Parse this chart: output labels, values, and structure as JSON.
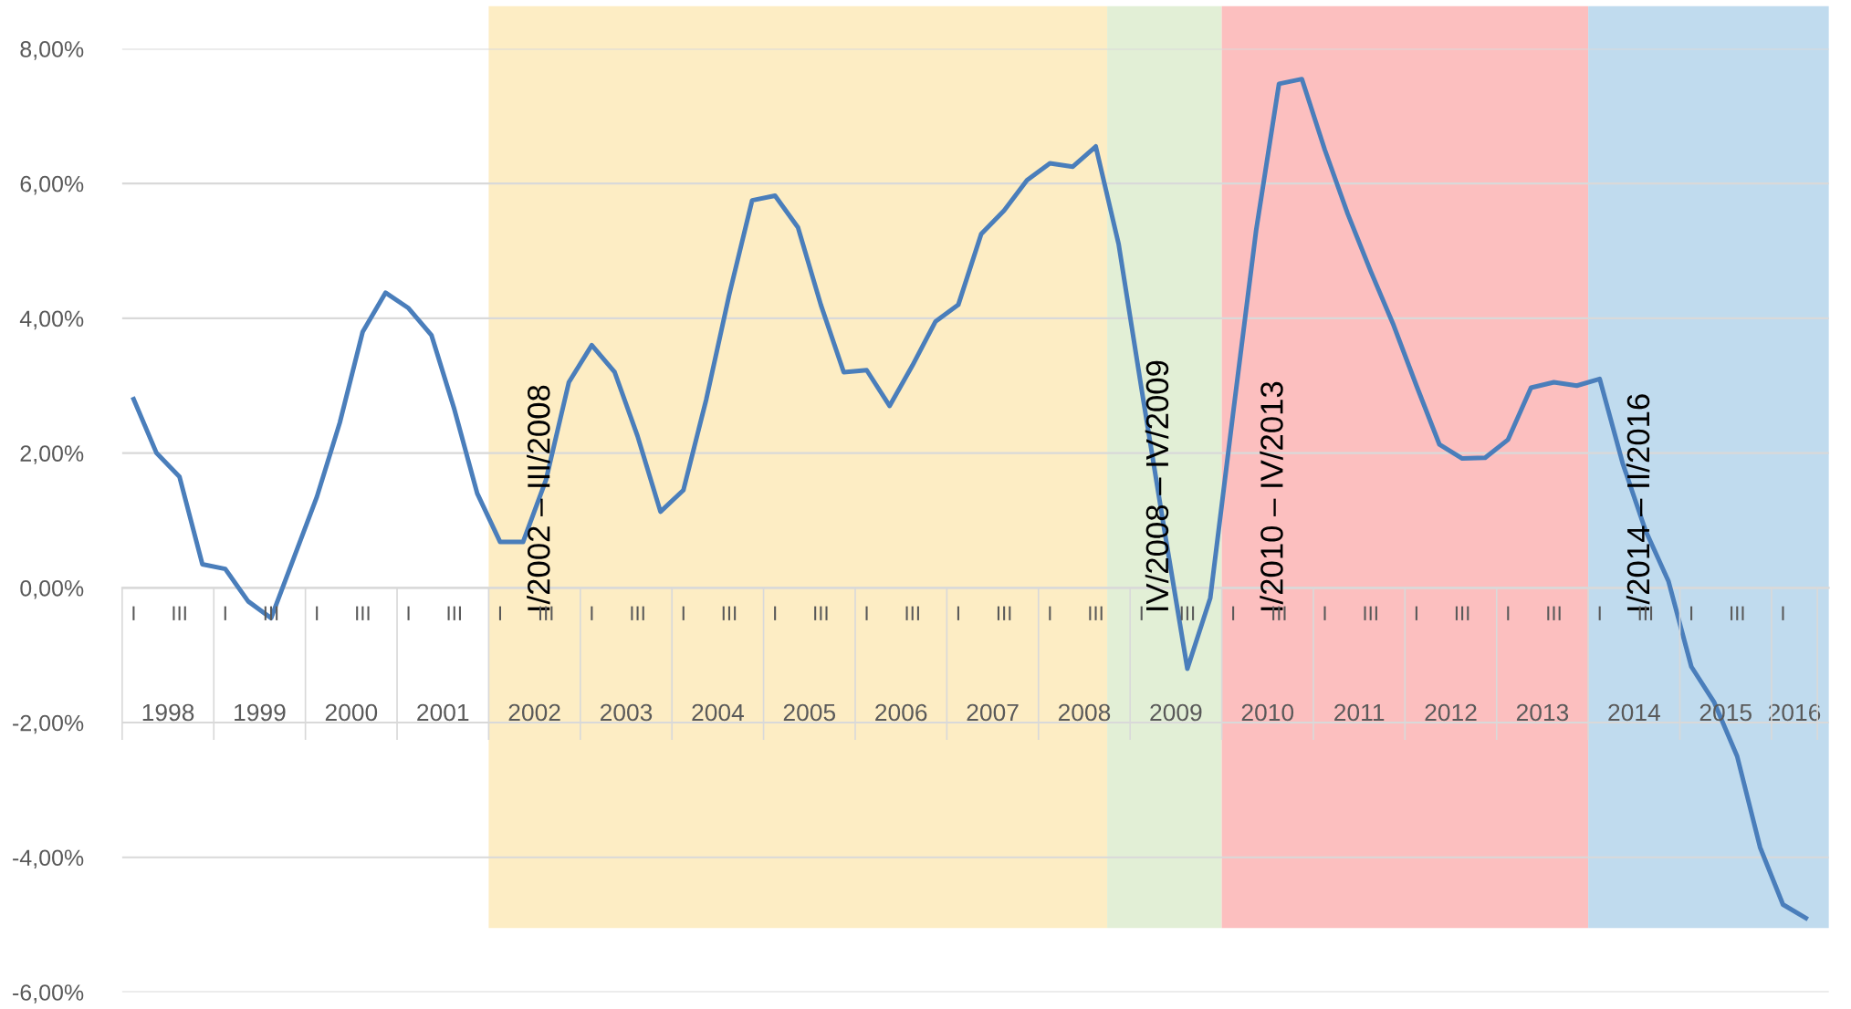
{
  "chart_data": {
    "type": "line",
    "categories": [
      "I",
      null,
      "III",
      null,
      "I",
      null,
      "III",
      null,
      "I",
      null,
      "III",
      null,
      "I",
      null,
      "III",
      null,
      "I",
      null,
      "III",
      null,
      "I",
      null,
      "III",
      null,
      "I",
      null,
      "III",
      null,
      "I",
      null,
      "III",
      null,
      "I",
      null,
      "III",
      null,
      "I",
      null,
      "III",
      null,
      "I",
      null,
      "III",
      null,
      "I",
      null,
      "III",
      null,
      "I",
      null,
      "III",
      null,
      "I",
      null,
      "III",
      null,
      "I",
      null,
      "III",
      null,
      "I",
      null,
      "III",
      null,
      "I",
      null,
      "III",
      null,
      "I",
      null,
      "III",
      null,
      "I",
      null
    ],
    "series": [
      {
        "color": "#4a7ebb",
        "values": [
          2.8,
          2.0,
          1.65,
          0.35,
          0.28,
          -0.2,
          -0.45,
          0.45,
          1.35,
          2.45,
          3.8,
          4.38,
          4.15,
          3.75,
          2.65,
          1.4,
          0.68,
          0.68,
          1.6,
          3.05,
          3.6,
          3.2,
          2.25,
          1.13,
          1.45,
          2.8,
          4.35,
          5.75,
          5.82,
          5.35,
          4.2,
          3.2,
          3.23,
          2.7,
          3.3,
          3.95,
          4.2,
          5.25,
          5.6,
          6.05,
          6.3,
          6.25,
          6.55,
          5.1,
          2.95,
          0.85,
          -1.2,
          -0.15,
          2.6,
          5.3,
          7.48,
          7.55,
          6.5,
          5.55,
          4.7,
          3.9,
          3.0,
          2.13,
          1.92,
          1.93,
          2.2,
          2.97,
          3.05,
          3.0,
          3.1,
          1.85,
          0.85,
          0.1,
          -1.17,
          -1.7,
          -2.5,
          -3.85,
          -4.7,
          -4.9
        ]
      }
    ],
    "ylim": [
      -6,
      8
    ],
    "yticks": [
      {
        "value": -6,
        "label": "-6,00%"
      },
      {
        "value": -4,
        "label": "-4,00%"
      },
      {
        "value": -2,
        "label": "-2,00%"
      },
      {
        "value": 0,
        "label": "0,00%"
      },
      {
        "value": 2,
        "label": "2,00%"
      },
      {
        "value": 4,
        "label": "4,00%"
      },
      {
        "value": 6,
        "label": "6,00%"
      },
      {
        "value": 8,
        "label": "8,00%"
      }
    ],
    "grid": "y",
    "annotations": [
      "1998",
      "1999",
      "2000",
      "2001",
      "2002",
      "2003",
      "2004",
      "2005",
      "2006",
      "2007",
      "2008",
      "2009",
      "2010",
      "2011",
      "2012",
      "2013",
      "2014",
      "2015",
      "2016",
      "I/2002 – III/2008",
      "IV/2008 – IV/2009",
      "I/2010 – IV/2013",
      "I/2014 – II/2016"
    ]
  }
}
